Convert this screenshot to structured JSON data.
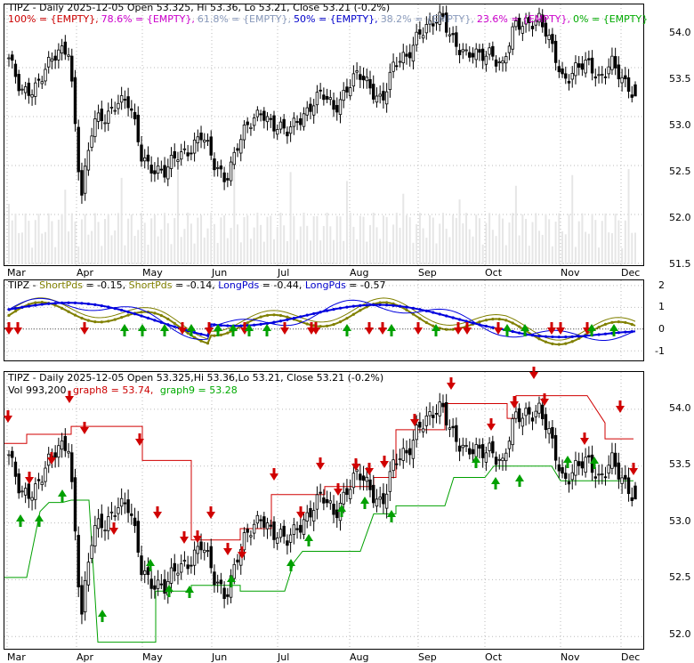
{
  "colors": {
    "up": "#000000",
    "down": "#000000",
    "grid": "#bbbbbb",
    "red": "#d00000",
    "green": "#00a000",
    "blue": "#0000dd",
    "olive": "#808000",
    "magenta": "#cc00cc",
    "steel": "#8899bb",
    "volume": "#e6e6e6"
  },
  "panel1": {
    "title": "TIPZ - Daily 2025-12-05 Open 53.325, Hi 53.36, Lo 53.21, Close 53.21 (-0.2%)",
    "fib_legend": [
      {
        "text": "100% = {EMPTY},",
        "color": "#cc0000"
      },
      {
        "text": "78.6% = {EMPTY},",
        "color": "#cc00cc"
      },
      {
        "text": "61.8% = {EMPTY},",
        "color": "#8899bb"
      },
      {
        "text": "50% = {EMPTY},",
        "color": "#0000cc"
      },
      {
        "text": "38.2% = {EMPTY},",
        "color": "#8899bb"
      },
      {
        "text": "23.6% = {EMPTY},",
        "color": "#cc00cc"
      },
      {
        "text": "0% = {EMPTY}",
        "color": "#00aa00"
      }
    ],
    "y_ticks": [
      "54.0",
      "53.5",
      "53.0",
      "52.5",
      "52.0",
      "51.5"
    ]
  },
  "panel2": {
    "title_parts": [
      {
        "text": "TIPZ - ",
        "color": "#000000"
      },
      {
        "text": "ShortPds",
        "color": "#808000"
      },
      {
        "text": " = -0.15, ",
        "color": "#000000"
      },
      {
        "text": "ShortPds",
        "color": "#808000"
      },
      {
        "text": " = -0.14, ",
        "color": "#000000"
      },
      {
        "text": "LongPds",
        "color": "#0000cc"
      },
      {
        "text": " = -0.44, ",
        "color": "#000000"
      },
      {
        "text": "LongPds",
        "color": "#0000cc"
      },
      {
        "text": " = -0.57",
        "color": "#000000"
      }
    ],
    "y_ticks": [
      "2",
      "1",
      "0",
      "-1"
    ]
  },
  "panel3": {
    "title": "TIPZ - Daily 2025-12-05 Open 53.325,Hi 53.36,Lo 53.21, Close 53.21 (-0.2%)",
    "vol_label": "Vol 993,200",
    "graph8_label": "graph8 = 53.74,",
    "graph9_label": "graph9 = 53.28",
    "y_ticks": [
      "54.0",
      "53.5",
      "53.0",
      "52.5",
      "52.0"
    ]
  },
  "months": [
    "Mar",
    "Apr",
    "May",
    "Jun",
    "Jul",
    "Aug",
    "Sep",
    "Oct",
    "Nov",
    "Dec"
  ],
  "chart_data": [
    {
      "type": "candlestick",
      "title": "TIPZ - Daily 2025-12-05 Open 53.325, Hi 53.36, Lo 53.21, Close 53.21 (-0.2%)",
      "ylim": [
        51.5,
        54.1
      ],
      "close_path_months": [
        "Mar",
        "Apr",
        "May",
        "Jun",
        "Jul",
        "Aug",
        "Sep",
        "Oct",
        "Nov",
        "Dec"
      ],
      "close_approx": [
        53.6,
        53.2,
        53.3,
        53.5,
        53.6,
        53.7,
        52.2,
        52.9,
        53.0,
        53.2,
        53.1,
        52.6,
        52.5,
        52.4,
        52.6,
        52.7,
        52.8,
        52.5,
        52.4,
        52.7,
        52.9,
        53.1,
        52.9,
        52.8,
        53.0,
        53.1,
        53.2,
        53.1,
        53.3,
        53.4,
        53.3,
        53.2,
        53.5,
        53.6,
        53.9,
        53.9,
        54.0,
        53.8,
        53.6,
        53.6,
        53.7,
        53.5,
        53.9,
        54.0,
        54.0,
        53.7,
        53.4,
        53.5,
        53.5,
        53.4,
        53.6,
        53.3,
        53.2
      ],
      "last": {
        "open": 53.325,
        "high": 53.36,
        "low": 53.21,
        "close": 53.21
      }
    },
    {
      "type": "line",
      "title": "TIPZ - ShortPds / LongPds",
      "ylim": [
        -1.4,
        2.2
      ],
      "series": [
        {
          "name": "ShortPds",
          "last": -0.15
        },
        {
          "name": "ShortPds",
          "last": -0.14
        },
        {
          "name": "LongPds",
          "last": -0.44
        },
        {
          "name": "LongPds",
          "last": -0.57
        }
      ]
    },
    {
      "type": "candlestick",
      "title": "TIPZ - Daily 2025-12-05 Open 53.325,Hi 53.36,Lo 53.21, Close 53.21 (-0.2%)",
      "ylim": [
        51.9,
        54.25
      ],
      "volume_last": 993200,
      "series": [
        {
          "name": "graph8",
          "last": 53.74
        },
        {
          "name": "graph9",
          "last": 53.28
        }
      ]
    }
  ]
}
